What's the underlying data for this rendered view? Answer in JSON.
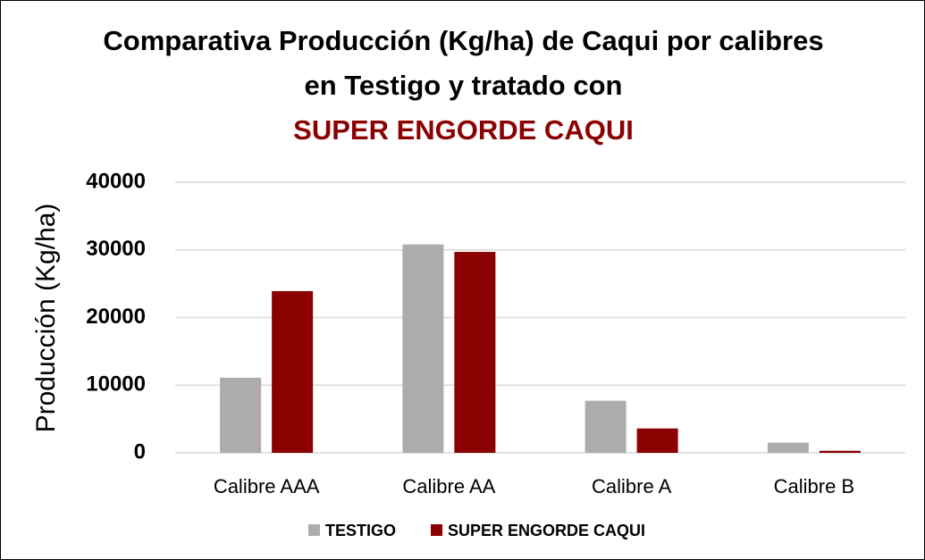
{
  "chart_data": {
    "type": "bar",
    "title": "Comparativa Producción (Kg/ha) de Caqui por calibres en Testigo y tratado con",
    "subtitle": "SUPER ENGORDE CAQUI",
    "y_label": "Producción (Kg/ha)",
    "categories": [
      "Calibre AAA",
      "Calibre AA",
      "Calibre A",
      "Calibre B"
    ],
    "series": [
      {
        "name": "TESTIGO",
        "color": "#aeabab",
        "values": [
          11100,
          30800,
          7700,
          1500
        ]
      },
      {
        "name": "SUPER ENGORDE CAQUI",
        "color": "#8b0000",
        "values": [
          23900,
          29700,
          3600,
          300
        ]
      }
    ],
    "ylim": [
      0,
      40000
    ],
    "yticks": [
      0,
      10000,
      20000,
      30000,
      40000
    ],
    "grid": true,
    "legend": "bottom",
    "subtitle_color": "#8b0000"
  }
}
